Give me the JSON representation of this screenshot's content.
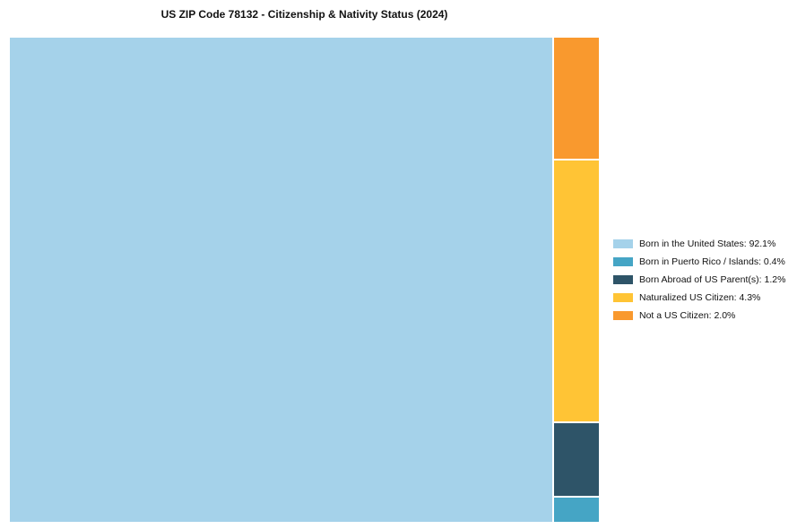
{
  "title": "US ZIP Code 78132 - Citizenship & Nativity Status (2024)",
  "chart_data": {
    "type": "treemap",
    "title": "US ZIP Code 78132 - Citizenship & Nativity Status (2024)",
    "main": {
      "label": "Born in the United States",
      "value": 92.1,
      "color": "#A5D2EA"
    },
    "column": [
      {
        "label": "Not a US Citizen",
        "value": 2.0,
        "color": "#F9992E"
      },
      {
        "label": "Naturalized US Citizen",
        "value": 4.3,
        "color": "#FFC435"
      },
      {
        "label": "Born Abroad of US Parent(s)",
        "value": 1.2,
        "color": "#2E5468"
      },
      {
        "label": "Born in Puerto Rico / Islands",
        "value": 0.4,
        "color": "#45A5C5"
      }
    ],
    "legend_position": "right",
    "legend": [
      {
        "label": "Born in the United States: 92.1%",
        "color": "#A5D2EA"
      },
      {
        "label": "Born in Puerto Rico / Islands: 0.4%",
        "color": "#45A5C5"
      },
      {
        "label": "Born Abroad of US Parent(s): 1.2%",
        "color": "#2E5468"
      },
      {
        "label": "Naturalized US Citizen: 4.3%",
        "color": "#FFC435"
      },
      {
        "label": "Not a US Citizen: 2.0%",
        "color": "#F9992E"
      }
    ]
  }
}
